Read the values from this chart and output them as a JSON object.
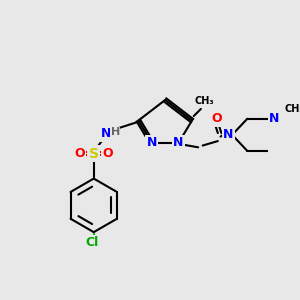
{
  "bg_color": "#e8e8e8",
  "bond_color": "#000000",
  "bond_width": 1.5,
  "atom_colors": {
    "N": "#0000ff",
    "O": "#ff0000",
    "S": "#cccc00",
    "Cl": "#00aa00",
    "H": "#666666",
    "C": "#000000"
  },
  "font_size": 9,
  "font_size_small": 8
}
